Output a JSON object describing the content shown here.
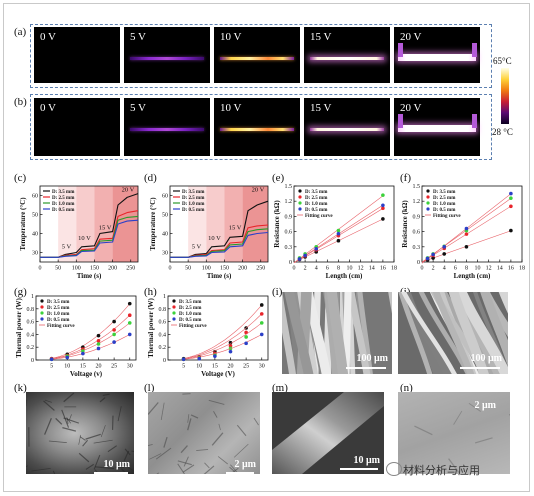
{
  "panel_labels": [
    "(a)",
    "(b)",
    "(c)",
    "(d)",
    "(e)",
    "(f)",
    "(g)",
    "(h)",
    "(i)",
    "(j)",
    "(k)",
    "(l)",
    "(m)",
    "(n)"
  ],
  "thermal": {
    "voltages": [
      "0 V",
      "5 V",
      "10 V",
      "15 V",
      "20 V"
    ],
    "cbar_max": "65°C",
    "cbar_min": "28 °C"
  },
  "sem_scales": {
    "i": "100 μm",
    "j": "100 μm",
    "k": "10 μm",
    "l": "2 μm",
    "m": "10 μm",
    "n": "2 μm"
  },
  "watermark": "材料分析与应用",
  "chart_data": [
    {
      "panel": "(c)",
      "type": "line",
      "xlabel": "Time (s)",
      "ylabel": "Temperature (°C)",
      "xlim": [
        0,
        270
      ],
      "ylim": [
        25,
        65
      ],
      "xticks": [
        0,
        50,
        100,
        150,
        200,
        250
      ],
      "yticks": [
        30,
        40,
        50,
        60
      ],
      "legend": [
        "D: 3.5 mm",
        "D: 2.5 mm",
        "D: 1.0 mm",
        "D: 0.5 mm"
      ],
      "colors": [
        "#111111",
        "#e8252b",
        "#2a9a2a",
        "#2b3fc7"
      ],
      "annotations": [
        "5 V",
        "10 V",
        "15 V",
        "20 V"
      ],
      "voltage_phases": [
        [
          50,
          100
        ],
        [
          100,
          150
        ],
        [
          150,
          200
        ],
        [
          200,
          270
        ]
      ],
      "series": [
        {
          "name": "D: 3.5 mm",
          "points": [
            [
              0,
              27.5
            ],
            [
              50,
              27.5
            ],
            [
              70,
              29
            ],
            [
              100,
              30
            ],
            [
              115,
              33
            ],
            [
              150,
              33.5
            ],
            [
              165,
              40
            ],
            [
              200,
              41
            ],
            [
              215,
              55
            ],
            [
              240,
              59
            ],
            [
              270,
              61
            ]
          ]
        },
        {
          "name": "D: 2.5 mm",
          "points": [
            [
              0,
              27.5
            ],
            [
              50,
              27.5
            ],
            [
              70,
              28.5
            ],
            [
              100,
              29
            ],
            [
              115,
              31.5
            ],
            [
              150,
              32
            ],
            [
              165,
              37
            ],
            [
              200,
              37.5
            ],
            [
              215,
              49
            ],
            [
              240,
              51
            ],
            [
              270,
              52
            ]
          ]
        },
        {
          "name": "D: 1.0 mm",
          "points": [
            [
              0,
              27.5
            ],
            [
              50,
              27.5
            ],
            [
              70,
              28.2
            ],
            [
              100,
              28.5
            ],
            [
              115,
              31
            ],
            [
              150,
              31.2
            ],
            [
              165,
              36
            ],
            [
              200,
              36.5
            ],
            [
              215,
              47
            ],
            [
              240,
              48.5
            ],
            [
              270,
              49
            ]
          ]
        },
        {
          "name": "D: 0.5 mm",
          "points": [
            [
              0,
              27.5
            ],
            [
              50,
              27.5
            ],
            [
              70,
              28
            ],
            [
              100,
              28.3
            ],
            [
              115,
              30.5
            ],
            [
              150,
              30.8
            ],
            [
              165,
              35
            ],
            [
              200,
              35.5
            ],
            [
              215,
              45
            ],
            [
              240,
              46.5
            ],
            [
              270,
              47
            ]
          ]
        }
      ]
    },
    {
      "panel": "(d)",
      "type": "line",
      "xlabel": "Time (s)",
      "ylabel": "Temperature (°C)",
      "xlim": [
        0,
        270
      ],
      "ylim": [
        25,
        65
      ],
      "xticks": [
        0,
        50,
        100,
        150,
        200,
        250
      ],
      "yticks": [
        30,
        40,
        50,
        60
      ],
      "legend": [
        "D: 3.5 mm",
        "D: 2.5 mm",
        "D: 1.0 mm",
        "D: 0.5 mm"
      ],
      "colors": [
        "#111111",
        "#e8252b",
        "#2a9a2a",
        "#2b3fc7"
      ],
      "annotations": [
        "5 V",
        "10 V",
        "15 V",
        "20 V"
      ],
      "voltage_phases": [
        [
          50,
          100
        ],
        [
          100,
          150
        ],
        [
          150,
          200
        ],
        [
          200,
          270
        ]
      ],
      "series": [
        {
          "name": "D: 3.5 mm",
          "points": [
            [
              0,
              27.5
            ],
            [
              50,
              27.5
            ],
            [
              70,
              29
            ],
            [
              100,
              29.5
            ],
            [
              115,
              33
            ],
            [
              150,
              33.5
            ],
            [
              165,
              38
            ],
            [
              200,
              38.5
            ],
            [
              215,
              52
            ],
            [
              240,
              55
            ],
            [
              270,
              57
            ]
          ]
        },
        {
          "name": "D: 2.5 mm",
          "points": [
            [
              0,
              27.5
            ],
            [
              50,
              27.5
            ],
            [
              70,
              28.5
            ],
            [
              100,
              29
            ],
            [
              115,
              31
            ],
            [
              150,
              31.5
            ],
            [
              165,
              35
            ],
            [
              200,
              35.5
            ],
            [
              215,
              43
            ],
            [
              240,
              44
            ],
            [
              270,
              44.5
            ]
          ]
        },
        {
          "name": "D: 1.0 mm",
          "points": [
            [
              0,
              27.5
            ],
            [
              50,
              27.5
            ],
            [
              70,
              28.2
            ],
            [
              100,
              28.5
            ],
            [
              115,
              30.5
            ],
            [
              150,
              31
            ],
            [
              165,
              34
            ],
            [
              200,
              34.5
            ],
            [
              215,
              41
            ],
            [
              240,
              42
            ],
            [
              270,
              42.5
            ]
          ]
        },
        {
          "name": "D: 0.5 mm",
          "points": [
            [
              0,
              27.5
            ],
            [
              50,
              27.5
            ],
            [
              70,
              28
            ],
            [
              100,
              28.2
            ],
            [
              115,
              30
            ],
            [
              150,
              30.3
            ],
            [
              165,
              33
            ],
            [
              200,
              33.5
            ],
            [
              215,
              39
            ],
            [
              240,
              40
            ],
            [
              270,
              40.5
            ]
          ]
        }
      ]
    },
    {
      "panel": "(e)",
      "type": "scatter",
      "xlabel": "Length (cm)",
      "ylabel": "Resistance (kΩ)",
      "xlim": [
        0,
        18
      ],
      "ylim": [
        0,
        1.5
      ],
      "xticks": [
        0,
        2,
        4,
        6,
        8,
        10,
        12,
        14,
        16,
        18
      ],
      "yticks": [
        0,
        0.3,
        0.6,
        0.9,
        1.2,
        1.5
      ],
      "legend": [
        "D: 3.5 mm",
        "D: 2.5 mm",
        "D: 1.0 mm",
        "D: 0.5 mm",
        "Fitting curve"
      ],
      "colors": [
        "#111111",
        "#e8252b",
        "#3bd23b",
        "#2b3fc7"
      ],
      "x": [
        1,
        2,
        4,
        8,
        16
      ],
      "series": [
        {
          "name": "D: 3.5 mm",
          "values": [
            0.05,
            0.1,
            0.2,
            0.42,
            0.85
          ]
        },
        {
          "name": "D: 2.5 mm",
          "values": [
            0.06,
            0.12,
            0.24,
            0.52,
            1.06
          ]
        },
        {
          "name": "D: 1.0 mm",
          "values": [
            0.08,
            0.16,
            0.3,
            0.62,
            1.32
          ]
        },
        {
          "name": "D: 0.5 mm",
          "values": [
            0.06,
            0.13,
            0.26,
            0.56,
            1.12
          ]
        }
      ]
    },
    {
      "panel": "(f)",
      "type": "scatter",
      "xlabel": "Length (cm)",
      "ylabel": "Resistance (kΩ)",
      "xlim": [
        0,
        18
      ],
      "ylim": [
        0,
        1.5
      ],
      "xticks": [
        0,
        2,
        4,
        6,
        8,
        10,
        12,
        14,
        16,
        18
      ],
      "yticks": [
        0,
        0.3,
        0.6,
        0.9,
        1.2,
        1.5
      ],
      "legend": [
        "D: 3.5 mm",
        "D: 2.5 mm",
        "D: 1.0 mm",
        "D: 0.5 mm",
        "Fitting curve"
      ],
      "colors": [
        "#111111",
        "#e8252b",
        "#3bd23b",
        "#2b3fc7"
      ],
      "x": [
        1,
        2,
        4,
        8,
        16
      ],
      "series": [
        {
          "name": "D: 3.5 mm",
          "values": [
            0.04,
            0.08,
            0.16,
            0.3,
            0.62
          ]
        },
        {
          "name": "D: 2.5 mm",
          "values": [
            0.07,
            0.13,
            0.27,
            0.55,
            1.1
          ]
        },
        {
          "name": "D: 1.0 mm",
          "values": [
            0.08,
            0.16,
            0.31,
            0.62,
            1.26
          ]
        },
        {
          "name": "D: 0.5 mm",
          "values": [
            0.07,
            0.15,
            0.3,
            0.66,
            1.35
          ]
        }
      ]
    },
    {
      "panel": "(g)",
      "type": "scatter",
      "xlabel": "Voltage (v)",
      "ylabel": "Thermal power (W)",
      "xlim": [
        0,
        32
      ],
      "ylim": [
        0,
        1.0
      ],
      "xticks": [
        5,
        10,
        15,
        20,
        25,
        30
      ],
      "yticks": [
        0,
        0.2,
        0.4,
        0.6,
        0.8,
        1.0
      ],
      "legend": [
        "D: 3.5 mm",
        "D: 2.5 mm",
        "D: 1.0 mm",
        "D: 0.5 mm",
        "Fitting curve"
      ],
      "colors": [
        "#111111",
        "#e8252b",
        "#3bd23b",
        "#2b3fc7"
      ],
      "x": [
        5,
        10,
        15,
        20,
        25,
        30
      ],
      "series": [
        {
          "name": "D: 3.5 mm",
          "values": [
            0.02,
            0.09,
            0.2,
            0.38,
            0.6,
            0.88
          ]
        },
        {
          "name": "D: 2.5 mm",
          "values": [
            0.02,
            0.07,
            0.17,
            0.3,
            0.47,
            0.7
          ]
        },
        {
          "name": "D: 1.0 mm",
          "values": [
            0.01,
            0.06,
            0.14,
            0.25,
            0.4,
            0.58
          ]
        },
        {
          "name": "D: 0.5 mm",
          "values": [
            0.01,
            0.04,
            0.1,
            0.18,
            0.28,
            0.4
          ]
        }
      ]
    },
    {
      "panel": "(h)",
      "type": "scatter",
      "xlabel": "Voltage (V)",
      "ylabel": "Thermal power (W)",
      "xlim": [
        0,
        32
      ],
      "ylim": [
        0,
        1.0
      ],
      "xticks": [
        5,
        10,
        15,
        20,
        25,
        30
      ],
      "yticks": [
        0,
        0.2,
        0.4,
        0.6,
        0.8,
        1.0
      ],
      "legend": [
        "D: 3.5 mm",
        "D: 2.5 mm",
        "D: 1.0 mm",
        "D: 0.5 mm",
        "Fitting curve"
      ],
      "colors": [
        "#111111",
        "#e8252b",
        "#3bd23b",
        "#2b3fc7"
      ],
      "x": [
        5,
        10,
        15,
        20,
        25,
        30
      ],
      "series": [
        {
          "name": "D: 3.5 mm",
          "values": [
            0.02,
            0.05,
            0.13,
            0.27,
            0.5,
            0.86
          ]
        },
        {
          "name": "D: 2.5 mm",
          "values": [
            0.01,
            0.04,
            0.1,
            0.22,
            0.43,
            0.72
          ]
        },
        {
          "name": "D: 1.0 mm",
          "values": [
            0.01,
            0.03,
            0.08,
            0.18,
            0.36,
            0.58
          ]
        },
        {
          "name": "D: 0.5 mm",
          "values": [
            0.01,
            0.02,
            0.06,
            0.13,
            0.26,
            0.4
          ]
        }
      ]
    }
  ]
}
